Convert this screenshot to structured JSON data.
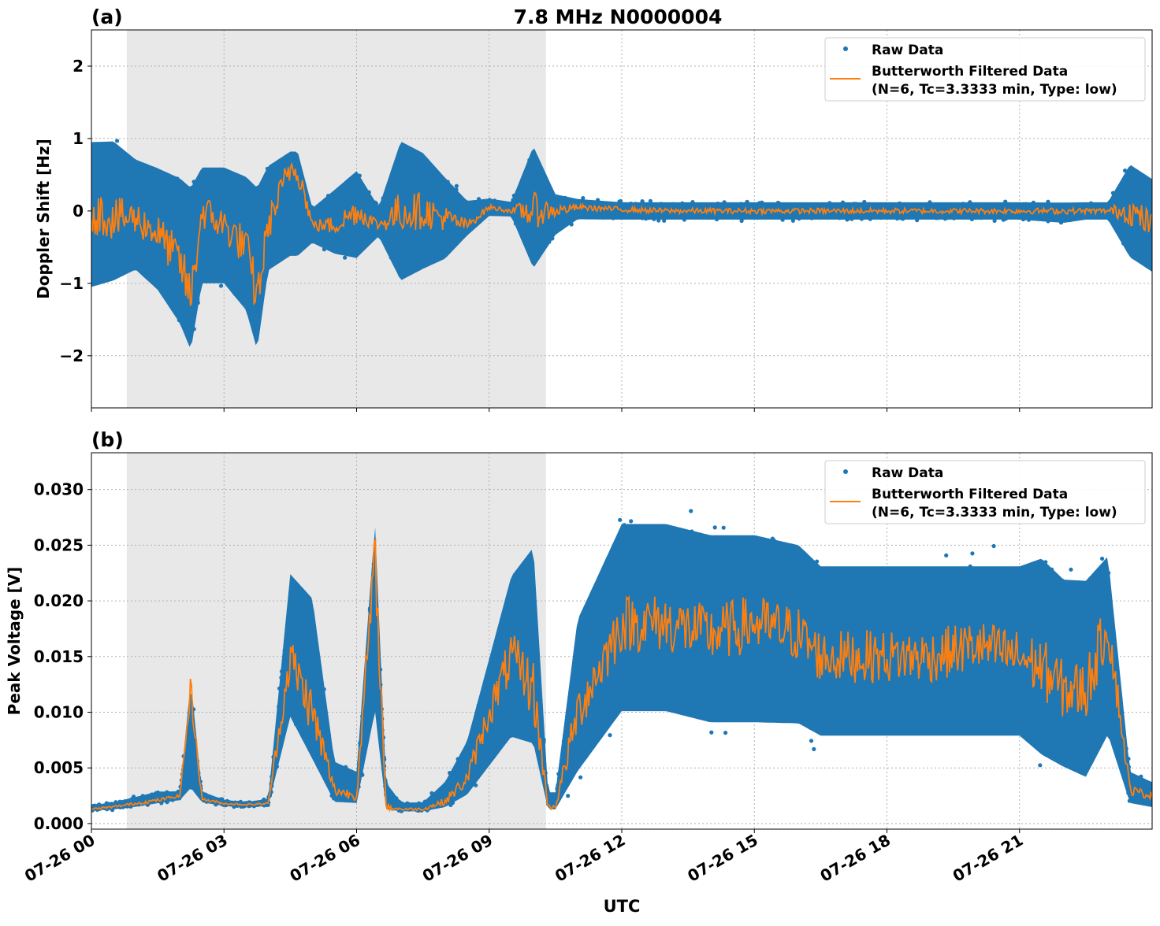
{
  "title": "7.8 MHz N0000004",
  "xlabel": "UTC",
  "date": "07-26",
  "x_ticks": [
    "07-26 00",
    "07-26 03",
    "07-26 06",
    "07-26 09",
    "07-26 12",
    "07-26 15",
    "07-26 18",
    "07-26 21"
  ],
  "legend": {
    "raw": "Raw Data",
    "filtered_line1": "Butterworth Filtered Data",
    "filtered_line2": "(N=6, Tc=3.3333 min, Type: low)",
    "placement": "top-right"
  },
  "colors": {
    "raw": "#1f77b4",
    "filtered": "#ff7f0e",
    "shade": "#e8e8e8",
    "grid": "#b0b0b0"
  },
  "shaded_span": [
    "00:48",
    "10:17"
  ],
  "grid": true,
  "chart_data": [
    {
      "type": "scatter+line",
      "panel_label": "(a)",
      "ylabel": "Doppler Shift [Hz]",
      "ylim": [
        -2.72,
        2.5
      ],
      "y_ticks": [
        -2,
        -1,
        0,
        1,
        2
      ],
      "y_tick_labels": [
        "−2",
        "−1",
        "0",
        "1",
        "2"
      ],
      "x": [
        "00:00",
        "00:30",
        "01:00",
        "01:30",
        "02:00",
        "02:15",
        "02:30",
        "03:00",
        "03:30",
        "03:45",
        "04:00",
        "04:30",
        "04:40",
        "05:00",
        "05:30",
        "06:00",
        "06:30",
        "07:00",
        "07:30",
        "08:00",
        "08:30",
        "09:00",
        "09:30",
        "10:00",
        "10:30",
        "11:00",
        "12:00",
        "13:00",
        "14:00",
        "15:00",
        "16:00",
        "17:00",
        "18:00",
        "19:00",
        "20:00",
        "21:00",
        "22:00",
        "22:30",
        "23:00",
        "23:30",
        "24:00"
      ],
      "filtered": [
        0.0,
        -0.1,
        -0.1,
        -0.3,
        -0.7,
        -1.2,
        0.0,
        -0.2,
        -0.5,
        -1.2,
        -0.2,
        0.6,
        0.6,
        -0.2,
        -0.2,
        0.0,
        -0.2,
        0.0,
        0.0,
        -0.1,
        -0.2,
        0.05,
        0.0,
        0.0,
        0.0,
        0.05,
        0.02,
        0.0,
        0.0,
        0.0,
        0.0,
        0.0,
        0.0,
        0.0,
        0.0,
        0.0,
        0.0,
        0.0,
        0.0,
        0.0,
        -0.2
      ],
      "raw_lower": [
        -1.3,
        -1.2,
        -1.0,
        -1.3,
        -1.8,
        -2.2,
        -1.2,
        -1.2,
        -1.6,
        -2.2,
        -1.0,
        -0.8,
        -0.8,
        -0.5,
        -0.7,
        -0.8,
        -0.4,
        -1.2,
        -1.0,
        -0.8,
        -0.4,
        -0.1,
        -0.1,
        -1.0,
        -0.4,
        -0.15,
        -0.15,
        -0.15,
        -0.15,
        -0.15,
        -0.15,
        -0.15,
        -0.15,
        -0.15,
        -0.15,
        -0.15,
        -0.2,
        -0.15,
        -0.15,
        -0.8,
        -1.0
      ],
      "raw_upper": [
        1.2,
        1.2,
        0.9,
        0.8,
        0.7,
        0.6,
        0.8,
        0.8,
        0.7,
        0.6,
        0.8,
        1.0,
        1.0,
        0.1,
        0.4,
        0.7,
        0.1,
        1.2,
        1.0,
        0.6,
        0.2,
        0.2,
        0.15,
        1.1,
        0.3,
        0.2,
        0.15,
        0.15,
        0.15,
        0.15,
        0.15,
        0.15,
        0.15,
        0.15,
        0.15,
        0.15,
        0.15,
        0.15,
        0.15,
        0.8,
        0.6
      ]
    },
    {
      "type": "scatter+line",
      "panel_label": "(b)",
      "ylabel": "Peak Voltage [V]",
      "ylim": [
        -0.0005,
        0.0333
      ],
      "y_ticks": [
        0,
        0.005,
        0.01,
        0.015,
        0.02,
        0.025,
        0.03
      ],
      "y_tick_labels": [
        "0.000",
        "0.005",
        "0.010",
        "0.015",
        "0.020",
        "0.025",
        "0.030"
      ],
      "x": [
        "00:00",
        "00:30",
        "01:00",
        "01:30",
        "02:00",
        "02:15",
        "02:30",
        "03:00",
        "03:30",
        "04:00",
        "04:30",
        "05:00",
        "05:30",
        "06:00",
        "06:25",
        "06:40",
        "07:00",
        "07:30",
        "08:00",
        "08:30",
        "09:00",
        "09:30",
        "10:00",
        "10:20",
        "10:30",
        "11:00",
        "12:00",
        "13:00",
        "14:00",
        "15:00",
        "16:00",
        "16:30",
        "17:00",
        "18:00",
        "19:00",
        "20:00",
        "21:00",
        "21:30",
        "22:00",
        "22:30",
        "23:00",
        "23:30",
        "24:00"
      ],
      "filtered": [
        0.0013,
        0.0015,
        0.0018,
        0.0021,
        0.0025,
        0.012,
        0.0022,
        0.0018,
        0.0017,
        0.0018,
        0.015,
        0.01,
        0.003,
        0.0025,
        0.024,
        0.0015,
        0.0013,
        0.0013,
        0.002,
        0.004,
        0.01,
        0.015,
        0.012,
        0.0015,
        0.0015,
        0.01,
        0.018,
        0.018,
        0.017,
        0.018,
        0.017,
        0.015,
        0.015,
        0.015,
        0.015,
        0.016,
        0.015,
        0.014,
        0.012,
        0.012,
        0.018,
        0.003,
        0.0025
      ],
      "raw_lower": [
        0.0011,
        0.0012,
        0.0014,
        0.0017,
        0.002,
        0.002,
        0.0018,
        0.0015,
        0.0014,
        0.0015,
        0.008,
        0.004,
        0.0015,
        0.0015,
        0.008,
        0.001,
        0.001,
        0.001,
        0.0012,
        0.002,
        0.004,
        0.006,
        0.005,
        0.0011,
        0.0011,
        0.003,
        0.008,
        0.008,
        0.007,
        0.007,
        0.007,
        0.006,
        0.006,
        0.006,
        0.006,
        0.006,
        0.006,
        0.004,
        0.003,
        0.002,
        0.006,
        0.0015,
        0.0012
      ],
      "raw_upper": [
        0.0017,
        0.002,
        0.0025,
        0.003,
        0.003,
        0.014,
        0.003,
        0.0022,
        0.002,
        0.0023,
        0.024,
        0.022,
        0.006,
        0.005,
        0.029,
        0.004,
        0.002,
        0.002,
        0.004,
        0.008,
        0.016,
        0.024,
        0.027,
        0.003,
        0.003,
        0.02,
        0.029,
        0.029,
        0.028,
        0.028,
        0.027,
        0.025,
        0.025,
        0.025,
        0.025,
        0.025,
        0.025,
        0.026,
        0.024,
        0.024,
        0.026,
        0.005,
        0.004
      ]
    }
  ]
}
